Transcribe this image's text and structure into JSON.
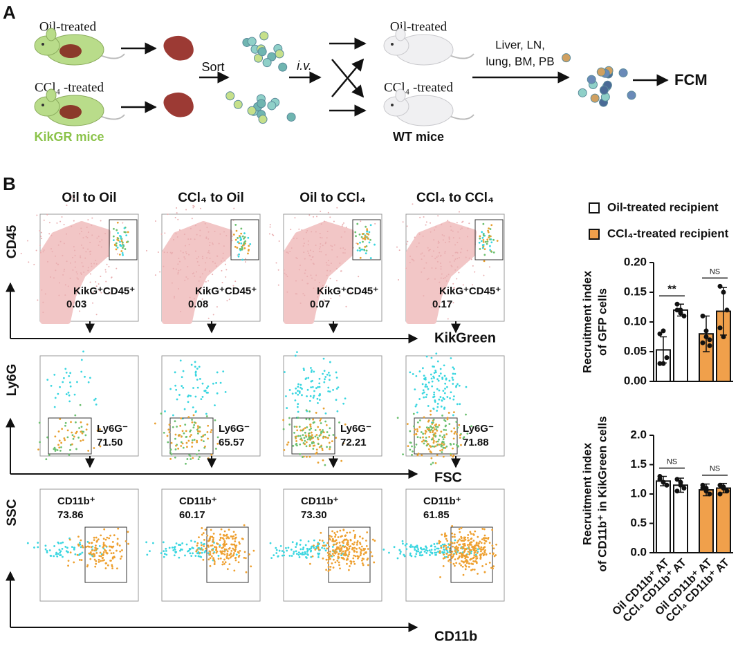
{
  "panel_a": {
    "label": "A",
    "donor_top": "Oil-treated",
    "donor_bottom": "CCl₄ -treated",
    "donor_strain": "KikGR mice",
    "sort": "Sort",
    "route": "i.v.",
    "recipient_top": "Oil-treated",
    "recipient_bottom": "CCl₄ -treated",
    "recipient_strain": "WT mice",
    "tissues": [
      "Liver, LN,",
      "lung, BM, PB"
    ],
    "readout": "FCM"
  },
  "panel_b": {
    "label": "B",
    "columns": [
      "Oil to Oil",
      "CCl₄ to Oil",
      "Oil to CCl₄",
      "CCl₄  to CCl₄"
    ],
    "rows": [
      {
        "axis_y": "CD45",
        "axis_x": "KikGreen",
        "gate": "KikG⁺CD45⁺",
        "values": [
          "0.03",
          "0.08",
          "0.07",
          "0.17"
        ]
      },
      {
        "axis_y": "Ly6G",
        "axis_x": "FSC",
        "gate": "Ly6G⁻",
        "values": [
          "71.50",
          "65.57",
          "72.21",
          "71.88"
        ]
      },
      {
        "axis_y": "SSC",
        "axis_x": "CD11b",
        "gate": "CD11b⁺",
        "values": [
          "73.86",
          "60.17",
          "73.30",
          "61.85"
        ]
      }
    ]
  },
  "legend": [
    {
      "name": "Oil-treated recipient",
      "color": "#ffffff"
    },
    {
      "name": "CCl₄-treated recipient",
      "color": "#f0a04b"
    }
  ],
  "chart_data": [
    {
      "type": "bar",
      "y_label": [
        "Recruitment index",
        "of GFP cells"
      ],
      "categories": [
        null,
        null,
        null,
        null
      ],
      "values": [
        0.053,
        0.12,
        0.08,
        0.118
      ],
      "errors": [
        0.022,
        0.01,
        0.03,
        0.04
      ],
      "points": [
        [
          0.08,
          0.085,
          0.04,
          0.03,
          0.03
        ],
        [
          0.13,
          0.12,
          0.11,
          0.12,
          0.115
        ],
        [
          0.11,
          0.085,
          0.07,
          0.065,
          0.075,
          0.06
        ],
        [
          0.16,
          0.15,
          0.12,
          0.09,
          0.075
        ]
      ],
      "colors": [
        "#ffffff",
        "#ffffff",
        "#f0a04b",
        "#f0a04b"
      ],
      "ylim": [
        0,
        0.2
      ],
      "yticks": [
        {
          "value": 0,
          "label": "0.00"
        },
        0.05,
        {
          "value": 0.1,
          "label": "0.10"
        },
        0.15,
        {
          "value": 0.2,
          "label": "0.20"
        }
      ],
      "brackets": [
        "**",
        "NS"
      ]
    },
    {
      "type": "bar",
      "y_label": [
        "Recruitment index",
        "of CD11b⁺ in KikGreen cells"
      ],
      "categories": [
        "Oil CD11b⁺ AT",
        "CCl₄ CD11b⁺ AT",
        "Oil CD11b⁺ AT",
        "CCl₄ CD11b⁺ AT"
      ],
      "values": [
        1.22,
        1.15,
        1.07,
        1.1
      ],
      "errors": [
        0.08,
        0.12,
        0.1,
        0.08
      ],
      "points": [
        [
          1.3,
          1.2,
          1.15,
          1.25
        ],
        [
          1.25,
          1.2,
          1.1,
          1.05,
          1.15
        ],
        [
          1.1,
          1.05,
          1.0,
          1.15,
          1.1
        ],
        [
          1.15,
          1.1,
          1.05,
          1.0,
          1.12
        ]
      ],
      "colors": [
        "#ffffff",
        "#ffffff",
        "#f0a04b",
        "#f0a04b"
      ],
      "ylim": [
        0,
        2
      ],
      "yticks": [
        {
          "value": 0,
          "label": "0.0"
        },
        0.5,
        {
          "value": 1,
          "label": "1.0"
        },
        1.5,
        {
          "value": 2,
          "label": "2.0"
        }
      ],
      "brackets": [
        "NS",
        "NS"
      ]
    }
  ]
}
